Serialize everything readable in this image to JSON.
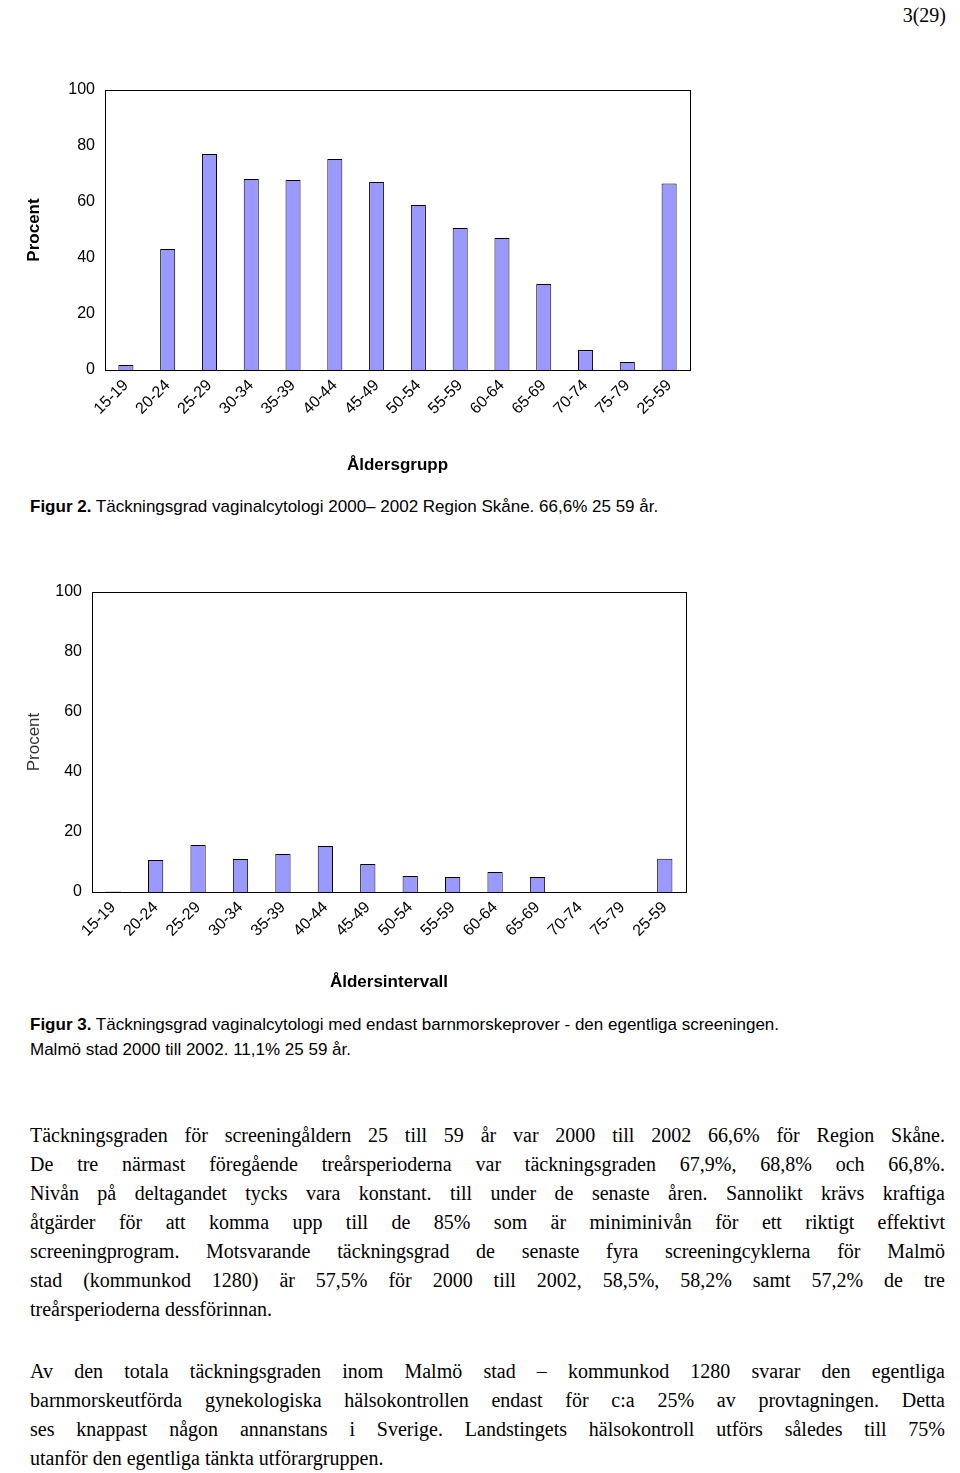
{
  "page_number": "3(29)",
  "chart_data": [
    {
      "type": "bar",
      "x_label": "Åldersgrupp",
      "y_label": "Procent",
      "categories": [
        "15-19",
        "20-24",
        "25-29",
        "30-34",
        "35-39",
        "40-44",
        "45-49",
        "50-54",
        "55-59",
        "60-64",
        "65-69",
        "70-74",
        "75-79",
        "25-59"
      ],
      "values": [
        1.8,
        43.2,
        77.1,
        68.2,
        67.9,
        75.4,
        67.1,
        58.9,
        50.7,
        47.1,
        30.7,
        7.1,
        2.9,
        66.6
      ],
      "color": "#9999ff",
      "ylim": [
        0,
        100
      ],
      "yticks": [
        0,
        20,
        40,
        60,
        80,
        100
      ],
      "grid": false
    },
    {
      "type": "bar",
      "x_label": "Åldersintervall",
      "y_label": "Procent",
      "categories": [
        "15-19",
        "20-24",
        "25-29",
        "30-34",
        "35-39",
        "40-44",
        "45-49",
        "50-54",
        "55-59",
        "60-64",
        "65-69",
        "70-74",
        "75-79",
        "25-59"
      ],
      "values": [
        0.2,
        10.7,
        15.7,
        11.0,
        12.7,
        15.3,
        9.3,
        5.3,
        5.0,
        6.7,
        5.0,
        0,
        0,
        11.1
      ],
      "color": "#9999ff",
      "ylim": [
        0,
        100
      ],
      "yticks": [
        0,
        20,
        40,
        60,
        80,
        100
      ],
      "grid": false
    }
  ],
  "captions": [
    {
      "label": "Figur 2.",
      "lines": [
        "Täckningsgrad vaginalcytologi 2000– 2002 Region Skåne. 66,6% 25 59 år."
      ]
    },
    {
      "label": "Figur 3.",
      "lines": [
        "Täckningsgrad vaginalcytologi med endast barnmorskeprover - den egentliga screeningen.",
        "Malmö stad 2000 till 2002. 11,1% 25 59 år."
      ]
    }
  ],
  "paragraphs": [
    [
      "Täckningsgraden för screeningåldern 25 till 59 år var 2000 till 2002 66,6% för Region Skåne.",
      "De tre närmast föregående treårsperioderna var täckningsgraden 67,9%, 68,8% och 66,8%.",
      "Nivån på deltagandet tycks vara konstant. till under de senaste åren. Sannolikt krävs kraftiga",
      "åtgärder för att komma upp till de 85% som är miniminivån för ett riktigt effektivt",
      "screeningprogram. Motsvarande täckningsgrad de senaste fyra screeningcyklerna för Malmö",
      "stad (kommunkod 1280) är 57,5% för 2000 till 2002,  58,5%, 58,2% samt 57,2% de tre",
      "treårsperioderna dessförinnan."
    ],
    [
      "Av den totala täckningsgraden inom Malmö stad – kommunkod 1280 svarar den egentliga",
      "barnmorskeutförda gynekologiska hälsokontrollen endast för c:a 25% av provtagningen. Detta",
      "ses knappast någon annanstans i Sverige. Landstingets hälsokontroll utförs således till 75%",
      "utanför den egentliga tänkta utförargruppen."
    ]
  ]
}
